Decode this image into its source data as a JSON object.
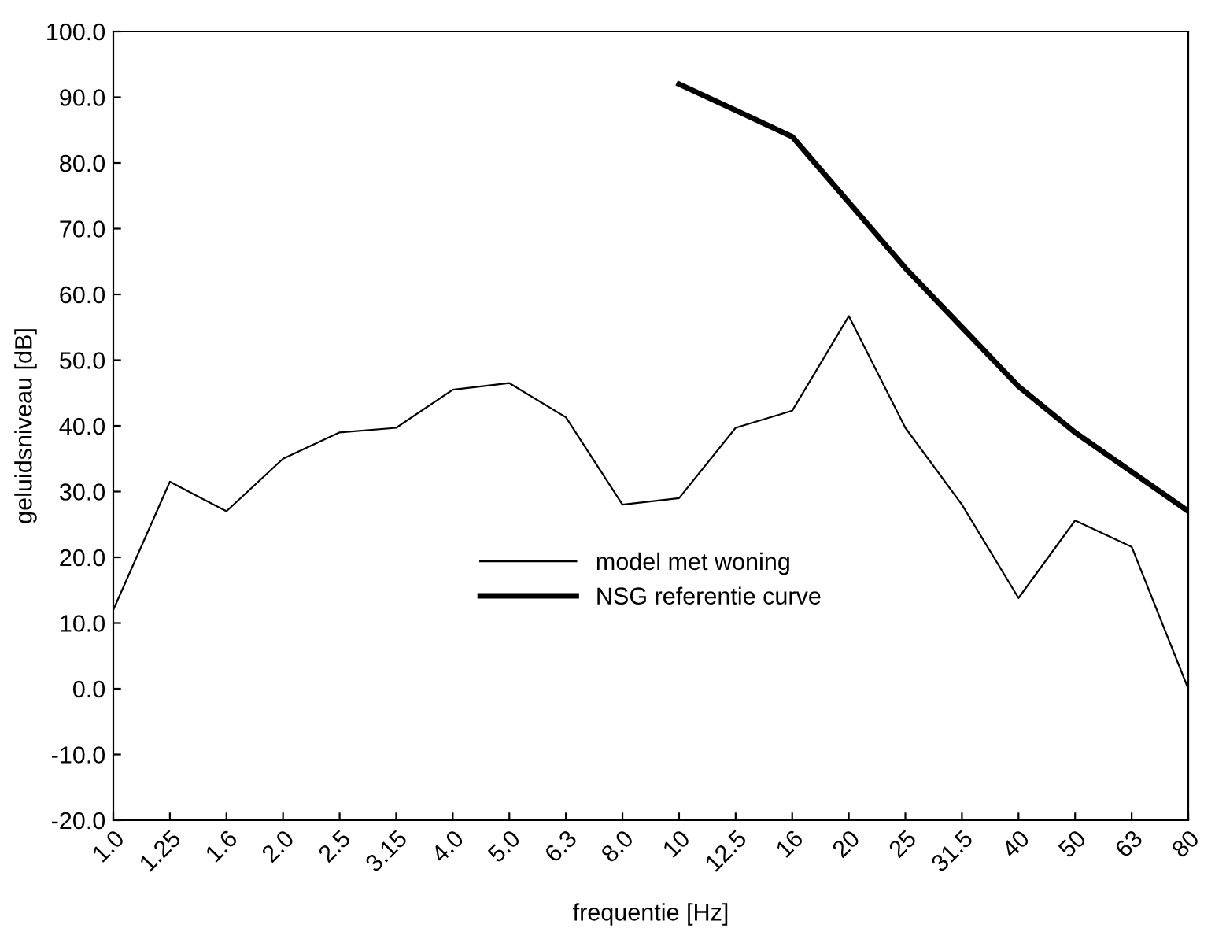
{
  "chart_data": {
    "type": "line",
    "xlabel": "frequentie [Hz]",
    "ylabel": "geluidsniveau [dB]",
    "categories": [
      "1.0",
      "1.25",
      "1.6",
      "2.0",
      "2.5",
      "3.15",
      "4.0",
      "5.0",
      "6.3",
      "8.0",
      "10",
      "12.5",
      "16",
      "20",
      "25",
      "31.5",
      "40",
      "50",
      "63",
      "80"
    ],
    "series": [
      {
        "name": "model met woning",
        "color": "#000000",
        "values": [
          12,
          31.5,
          27,
          35,
          39,
          39.7,
          45.5,
          46.5,
          41.3,
          28,
          29,
          39.7,
          42.3,
          56.7,
          39.7,
          28,
          13.8,
          25.6,
          21.6,
          0
        ]
      },
      {
        "name": "NSG referentie curve",
        "color": "#000000",
        "values": [
          null,
          null,
          null,
          null,
          null,
          null,
          null,
          null,
          null,
          null,
          92,
          88,
          84,
          74,
          64,
          55,
          46,
          39,
          33,
          27
        ]
      }
    ],
    "ylim": [
      -20,
      100
    ],
    "yticks": [
      {
        "value": -20,
        "label": "-20.0"
      },
      {
        "value": -10,
        "label": "-10.0"
      },
      {
        "value": 0,
        "label": "0.0"
      },
      {
        "value": 10,
        "label": "10.0"
      },
      {
        "value": 20,
        "label": "20.0"
      },
      {
        "value": 30,
        "label": "30.0"
      },
      {
        "value": 40,
        "label": "40.0"
      },
      {
        "value": 50,
        "label": "50.0"
      },
      {
        "value": 60,
        "label": "60.0"
      },
      {
        "value": 70,
        "label": "70.0"
      },
      {
        "value": 80,
        "label": "80.0"
      },
      {
        "value": 90,
        "label": "90.0"
      },
      {
        "value": 100,
        "label": "100.0"
      }
    ],
    "legend": "bottom",
    "grid": false
  }
}
